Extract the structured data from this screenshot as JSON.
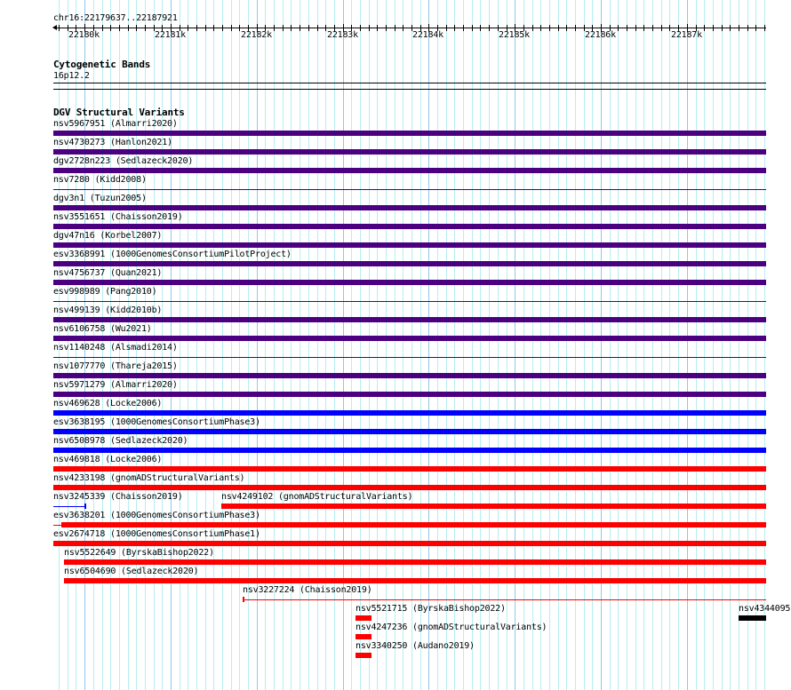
{
  "ruler": {
    "location": "chr16:22179637..22187921",
    "major_labels": [
      "22180k",
      "22181k",
      "22182k",
      "22183k",
      "22184k",
      "22185k",
      "22186k",
      "22187k"
    ]
  },
  "cytobands": {
    "title": "Cytogenetic Bands",
    "band": "16p12.2"
  },
  "dgv": {
    "title": "DGV Structural Variants",
    "colors": {
      "loss": "#4b0082",
      "gain": "#0000ff",
      "del": "#ff0000",
      "other": "#000000"
    },
    "features": [
      {
        "label": "nsv5967951 (Almarri2020)",
        "color": "#4b0082"
      },
      {
        "label": "nsv4730273 (Hanlon2021)",
        "color": "#4b0082"
      },
      {
        "label": "dgv2728n223 (Sedlazeck2020)",
        "color": "#4b0082"
      },
      {
        "label": "nsv7280 (Kidd2008)",
        "color": "#4b0082"
      },
      {
        "label": "dgv3n1 (Tuzun2005)",
        "color": "#4b0082"
      },
      {
        "label": "nsv3551651 (Chaisson2019)",
        "color": "#4b0082"
      },
      {
        "label": "dgv47n16 (Korbel2007)",
        "color": "#4b0082"
      },
      {
        "label": "esv3368991 (1000GenomesConsortiumPilotProject)",
        "color": "#4b0082"
      },
      {
        "label": "nsv4756737 (Quan2021)",
        "color": "#4b0082"
      },
      {
        "label": "esv998989 (Pang2010)",
        "color": "#4b0082"
      },
      {
        "label": "nsv499139 (Kidd2010b)",
        "color": "#4b0082"
      },
      {
        "label": "nsv6106758 (Wu2021)",
        "color": "#4b0082"
      },
      {
        "label": "nsv1140248 (Alsmadi2014)",
        "color": "#4b0082"
      },
      {
        "label": "nsv1077770 (Thareja2015)",
        "color": "#4b0082"
      },
      {
        "label": "nsv5971279 (Almarri2020)",
        "color": "#4b0082"
      },
      {
        "label": "nsv469628 (Locke2006)",
        "color": "#0000ff"
      },
      {
        "label": "esv3638195 (1000GenomesConsortiumPhase3)",
        "color": "#0000ff"
      },
      {
        "label": "nsv6508978 (Sedlazeck2020)",
        "color": "#0000ff"
      },
      {
        "label": "nsv469818 (Locke2006)",
        "color": "#ff0000"
      },
      {
        "label": "nsv4233198 (gnomADStructuralVariants)",
        "color": "#ff0000"
      },
      {
        "label": "nsv3245339 (Chaisson2019)",
        "color": "#0000ff"
      },
      {
        "label": "nsv4249102 (gnomADStructuralVariants)",
        "color": "#ff0000"
      },
      {
        "label": "esv3638201 (1000GenomesConsortiumPhase3)",
        "color": "#ff0000"
      },
      {
        "label": "esv2674718 (1000GenomesConsortiumPhase1)",
        "color": "#ff0000"
      },
      {
        "label": "nsv5522649 (ByrskaBishop2022)",
        "color": "#ff0000"
      },
      {
        "label": "nsv6504690 (Sedlazeck2020)",
        "color": "#ff0000"
      },
      {
        "label": "nsv3227224 (Chaisson2019)",
        "color": "#ff0000"
      },
      {
        "label": "nsv5521715 (ByrskaBishop2022)",
        "color": "#ff0000"
      },
      {
        "label": "nsv4247236 (gnomADStructuralVariants)",
        "color": "#ff0000"
      },
      {
        "label": "nsv3340250 (Audano2019)",
        "color": "#ff0000"
      },
      {
        "label": "nsv4344095",
        "color": "#000000"
      }
    ]
  }
}
